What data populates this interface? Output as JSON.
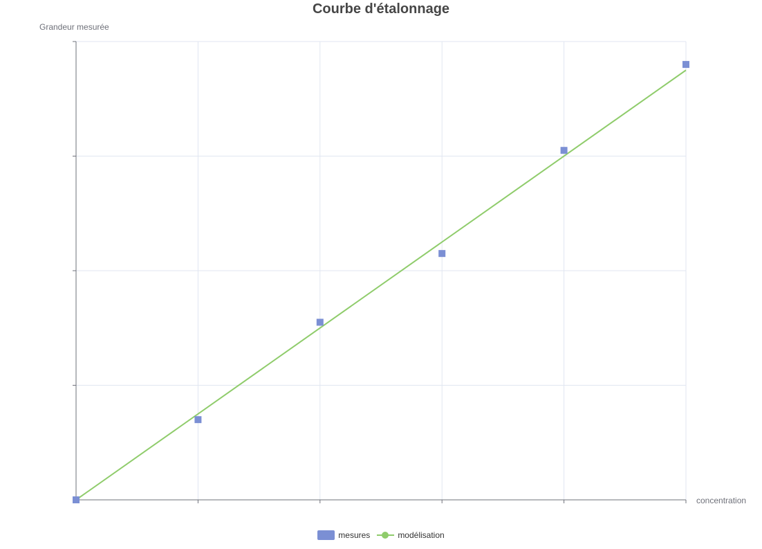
{
  "chart_data": {
    "type": "scatter",
    "title": "Courbe d'étalonnage",
    "xlabel": "concentration",
    "ylabel": "Grandeur mesurée",
    "xlim": [
      0,
      5
    ],
    "ylim": [
      0,
      4
    ],
    "grid": true,
    "tick_labels_shown": false,
    "legend_position": "bottom-center",
    "series": [
      {
        "name": "mesures",
        "type": "scatter",
        "symbol": "square",
        "color": "#7b8fd4",
        "x": [
          0,
          1,
          2,
          3,
          4,
          5
        ],
        "y": [
          0,
          0.7,
          1.55,
          2.15,
          3.05,
          3.8
        ]
      },
      {
        "name": "modélisation",
        "type": "line",
        "color": "#8fcc6b",
        "x": [
          0,
          5
        ],
        "y": [
          0,
          3.75
        ]
      }
    ]
  }
}
